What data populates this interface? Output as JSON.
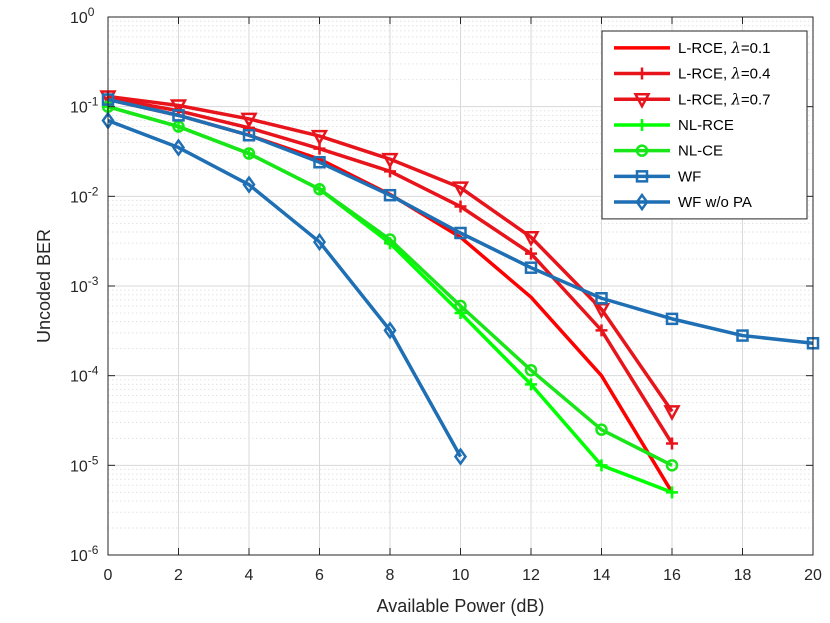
{
  "chart_data": {
    "type": "line",
    "title": "",
    "xlabel": "Available Power (dB)",
    "ylabel": "Uncoded BER",
    "xlim": [
      0,
      20
    ],
    "ylim": [
      1e-06,
      1
    ],
    "yscale": "log",
    "grid": true,
    "legend_position": "top-right",
    "x_ticks": [
      "0",
      "2",
      "4",
      "6",
      "8",
      "10",
      "12",
      "14",
      "16",
      "18",
      "20"
    ],
    "y_ticks": [
      {
        "base": "10",
        "exp": "0"
      },
      {
        "base": "10",
        "exp": "-1"
      },
      {
        "base": "10",
        "exp": "-2"
      },
      {
        "base": "10",
        "exp": "-3"
      },
      {
        "base": "10",
        "exp": "-4"
      },
      {
        "base": "10",
        "exp": "-5"
      },
      {
        "base": "10",
        "exp": "-6"
      }
    ],
    "series": [
      {
        "name": "L-RCE, λ=0.1",
        "prefix": "L-RCE, ",
        "lambda": "λ",
        "suffix": "=0.1",
        "color": "#ff0000",
        "marker": "none",
        "x": [
          0,
          2,
          4,
          6,
          8,
          10,
          12,
          14,
          16
        ],
        "y": [
          0.12,
          0.08,
          0.048,
          0.026,
          0.0105,
          0.0035,
          0.00075,
          0.0001,
          5e-06
        ]
      },
      {
        "name": "L-RCE, λ=0.4",
        "prefix": "L-RCE, ",
        "lambda": "λ",
        "suffix": "=0.4",
        "color": "#e8141b",
        "marker": "plus",
        "x": [
          0,
          2,
          4,
          6,
          8,
          10,
          12,
          14,
          16
        ],
        "y": [
          0.125,
          0.09,
          0.058,
          0.034,
          0.019,
          0.0077,
          0.0023,
          0.00032,
          1.75e-05
        ]
      },
      {
        "name": "L-RCE, λ=0.7",
        "prefix": "L-RCE, ",
        "lambda": "λ",
        "suffix": "=0.7",
        "color": "#e8141b",
        "marker": "triangle-down",
        "x": [
          0,
          2,
          4,
          6,
          8,
          10,
          12,
          14,
          16
        ],
        "y": [
          0.13,
          0.103,
          0.073,
          0.047,
          0.026,
          0.0125,
          0.0035,
          0.00055,
          4e-05
        ]
      },
      {
        "name": "NL-RCE",
        "prefix": "NL-RCE",
        "lambda": "",
        "suffix": "",
        "color": "#00ff00",
        "marker": "plus",
        "x": [
          0,
          2,
          4,
          6,
          8,
          10,
          12,
          14,
          16
        ],
        "y": [
          0.1,
          0.06,
          0.03,
          0.012,
          0.003,
          0.0005,
          8e-05,
          1e-05,
          5e-06
        ]
      },
      {
        "name": "NL-CE",
        "prefix": "NL-CE",
        "lambda": "",
        "suffix": "",
        "color": "#19e619",
        "marker": "circle",
        "x": [
          0,
          2,
          4,
          6,
          8,
          10,
          12,
          14,
          16
        ],
        "y": [
          0.1,
          0.06,
          0.03,
          0.012,
          0.0033,
          0.0006,
          0.000115,
          2.5e-05,
          1e-05
        ]
      },
      {
        "name": "WF",
        "prefix": "WF",
        "lambda": "",
        "suffix": "",
        "color": "#1f6fb4",
        "marker": "square",
        "x": [
          0,
          2,
          4,
          6,
          8,
          10,
          12,
          14,
          16,
          18,
          20
        ],
        "y": [
          0.12,
          0.08,
          0.048,
          0.024,
          0.0103,
          0.0039,
          0.0016,
          0.00073,
          0.00043,
          0.00028,
          0.00023
        ]
      },
      {
        "name": "WF w/o PA",
        "prefix": "WF w/o PA",
        "lambda": "",
        "suffix": "",
        "color": "#1f6fb4",
        "marker": "diamond",
        "x": [
          0,
          2,
          4,
          6,
          8,
          10
        ],
        "y": [
          0.07,
          0.035,
          0.0135,
          0.0031,
          0.00032,
          1.25e-05
        ]
      }
    ]
  }
}
